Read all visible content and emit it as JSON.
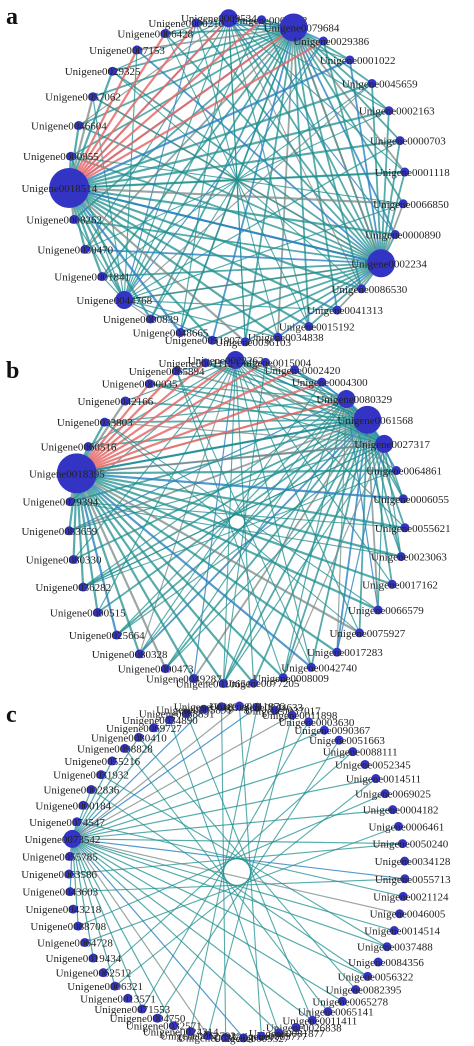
{
  "panels": [
    {
      "letter": "a",
      "nodes": [
        {
          "label": "Unigene0009534",
          "size": "m"
        },
        {
          "label": "Unigene0000372",
          "size": "s"
        },
        {
          "label": "Unigene0079684",
          "size": "l"
        },
        {
          "label": "Unigene0029386",
          "size": "s"
        },
        {
          "label": "Unigene0001022",
          "size": "s"
        },
        {
          "label": "Unigene0045659",
          "size": "s"
        },
        {
          "label": "Unigene0002163",
          "size": "s"
        },
        {
          "label": "Unigene0000703",
          "size": "s"
        },
        {
          "label": "Unigene0001118",
          "size": "s"
        },
        {
          "label": "Unigene0066850",
          "size": "s"
        },
        {
          "label": "Unigene0000890",
          "size": "s"
        },
        {
          "label": "Unigene0002234",
          "size": "l"
        },
        {
          "label": "Unigene0086530",
          "size": "s"
        },
        {
          "label": "Unigene0041313",
          "size": "s"
        },
        {
          "label": "Unigene0015192",
          "size": "s"
        },
        {
          "label": "Unigene0034838",
          "size": "s"
        },
        {
          "label": "Unigene0036103",
          "size": "s"
        },
        {
          "label": "Unigene0051907",
          "size": "s"
        },
        {
          "label": "Unigene0048665",
          "size": "s"
        },
        {
          "label": "Unigene0000839",
          "size": "s"
        },
        {
          "label": "Unigene0044768",
          "size": "m"
        },
        {
          "label": "Unigene0001841",
          "size": "s"
        },
        {
          "label": "Unigene0030470",
          "size": "s"
        },
        {
          "label": "Unigene0008262",
          "size": "s"
        },
        {
          "label": "Unigene0018514",
          "size": "xl"
        },
        {
          "label": "Unigene0000955",
          "size": "s"
        },
        {
          "label": "Unigene0046604",
          "size": "s"
        },
        {
          "label": "Unigene0057062",
          "size": "s"
        },
        {
          "label": "Unigene0029325",
          "size": "s"
        },
        {
          "label": "Unigene0007153",
          "size": "s"
        },
        {
          "label": "Unigene0006428",
          "size": "s"
        },
        {
          "label": "Unigene0000210",
          "size": "s"
        }
      ]
    },
    {
      "letter": "b",
      "nodes": [
        {
          "label": "Unigene0022262",
          "size": "m"
        },
        {
          "label": "Unigene0015004",
          "size": "s"
        },
        {
          "label": "Unigene0002420",
          "size": "s"
        },
        {
          "label": "Unigene0004300",
          "size": "s"
        },
        {
          "label": "Unigene0080329",
          "size": "m"
        },
        {
          "label": "Unigene0061568",
          "size": "l"
        },
        {
          "label": "Unigene0027317",
          "size": "m"
        },
        {
          "label": "Unigene0064861",
          "size": "s"
        },
        {
          "label": "Unigene0006055",
          "size": "s"
        },
        {
          "label": "Unigene0055621",
          "size": "s"
        },
        {
          "label": "Unigene0023063",
          "size": "s"
        },
        {
          "label": "Unigene0017162",
          "size": "s"
        },
        {
          "label": "Unigene0066579",
          "size": "s"
        },
        {
          "label": "Unigene0075927",
          "size": "s"
        },
        {
          "label": "Unigene0017283",
          "size": "s"
        },
        {
          "label": "Unigene0042740",
          "size": "s"
        },
        {
          "label": "Unigene0008009",
          "size": "s"
        },
        {
          "label": "Unigene0077205",
          "size": "s"
        },
        {
          "label": "Unigene0010651",
          "size": "s"
        },
        {
          "label": "Unigene0049287",
          "size": "s"
        },
        {
          "label": "Unigene0000473",
          "size": "s"
        },
        {
          "label": "Unigene0080328",
          "size": "s"
        },
        {
          "label": "Unigene0025664",
          "size": "s"
        },
        {
          "label": "Unigene0000515",
          "size": "s"
        },
        {
          "label": "Unigene0036282",
          "size": "s"
        },
        {
          "label": "Unigene0080330",
          "size": "s"
        },
        {
          "label": "Unigene0083659",
          "size": "s"
        },
        {
          "label": "Unigene0029394",
          "size": "s"
        },
        {
          "label": "Unigene0018395",
          "size": "xl"
        },
        {
          "label": "Unigene0060516",
          "size": "s"
        },
        {
          "label": "Unigene0033803",
          "size": "s"
        },
        {
          "label": "Unigene0042166",
          "size": "s"
        },
        {
          "label": "Unigene0000035",
          "size": "s"
        },
        {
          "label": "Unigene0065894",
          "size": "s"
        },
        {
          "label": "Unigene0001112",
          "size": "s"
        }
      ]
    },
    {
      "letter": "c",
      "nodes": [
        {
          "label": "Unigene0044633",
          "size": "s"
        },
        {
          "label": "Unigene0037017",
          "size": "s"
        },
        {
          "label": "Unigene0011898",
          "size": "s"
        },
        {
          "label": "Unigene0003630",
          "size": "s"
        },
        {
          "label": "Unigene0090367",
          "size": "s"
        },
        {
          "label": "Unigene0051663",
          "size": "s"
        },
        {
          "label": "Unigene0088111",
          "size": "s"
        },
        {
          "label": "Unigene0052345",
          "size": "s"
        },
        {
          "label": "Unigene0014511",
          "size": "s"
        },
        {
          "label": "Unigene0069025",
          "size": "s"
        },
        {
          "label": "Unigene0004182",
          "size": "s"
        },
        {
          "label": "Unigene0006461",
          "size": "s"
        },
        {
          "label": "Unigene0050240",
          "size": "s"
        },
        {
          "label": "Unigene0034128",
          "size": "s"
        },
        {
          "label": "Unigene0055713",
          "size": "s"
        },
        {
          "label": "Unigene0021124",
          "size": "s"
        },
        {
          "label": "Unigene0046005",
          "size": "s"
        },
        {
          "label": "Unigene0014514",
          "size": "s"
        },
        {
          "label": "Unigene0037488",
          "size": "s"
        },
        {
          "label": "Unigene0084356",
          "size": "s"
        },
        {
          "label": "Unigene0056322",
          "size": "s"
        },
        {
          "label": "Unigene0082395",
          "size": "s"
        },
        {
          "label": "Unigene0065278",
          "size": "s"
        },
        {
          "label": "Unigene0065141",
          "size": "s"
        },
        {
          "label": "Unigene0011411",
          "size": "s"
        },
        {
          "label": "Unigene0026838",
          "size": "s"
        },
        {
          "label": "Unigene0081877",
          "size": "s"
        },
        {
          "label": "Unigene0089777",
          "size": "s"
        },
        {
          "label": "Unigene0009327",
          "size": "s"
        },
        {
          "label": "Unigene0037209",
          "size": "s"
        },
        {
          "label": "Unigene0062792",
          "size": "s"
        },
        {
          "label": "Unigene0024314",
          "size": "s"
        },
        {
          "label": "Unigene0032571",
          "size": "s"
        },
        {
          "label": "Unigene0004750",
          "size": "s"
        },
        {
          "label": "Unigene0071553",
          "size": "s"
        },
        {
          "label": "Unigene0013571",
          "size": "s"
        },
        {
          "label": "Unigene0006321",
          "size": "s"
        },
        {
          "label": "Unigene0062512",
          "size": "s"
        },
        {
          "label": "Unigene0019434",
          "size": "s"
        },
        {
          "label": "Unigene0064728",
          "size": "s"
        },
        {
          "label": "Unigene0088708",
          "size": "s"
        },
        {
          "label": "Unigene0043218",
          "size": "s"
        },
        {
          "label": "Unigene0043603",
          "size": "s"
        },
        {
          "label": "Unigene0063586",
          "size": "s"
        },
        {
          "label": "Unigene0055785",
          "size": "s"
        },
        {
          "label": "Unigene0073542",
          "size": "m"
        },
        {
          "label": "Unigene0074547",
          "size": "s"
        },
        {
          "label": "Unigene0000184",
          "size": "s"
        },
        {
          "label": "Unigene0002836",
          "size": "s"
        },
        {
          "label": "Unigene0031932",
          "size": "s"
        },
        {
          "label": "Unigene0055216",
          "size": "s"
        },
        {
          "label": "Unigene0098828",
          "size": "s"
        },
        {
          "label": "Unigene0080410",
          "size": "s"
        },
        {
          "label": "Unigene0069727",
          "size": "s"
        },
        {
          "label": "Unigene0034890",
          "size": "s"
        },
        {
          "label": "Unigene0088891",
          "size": "s"
        },
        {
          "label": "Unigene0005891",
          "size": "s"
        },
        {
          "label": "Unigene0048378",
          "size": "s"
        },
        {
          "label": "Unigene0011876",
          "size": "s"
        }
      ]
    }
  ],
  "colors": {
    "node": "#3434c4",
    "edge_teal": "#1f8f8f",
    "edge_blue": "#2a7fc0",
    "edge_red": "#e86a6a",
    "edge_gray": "#7a8a86"
  }
}
